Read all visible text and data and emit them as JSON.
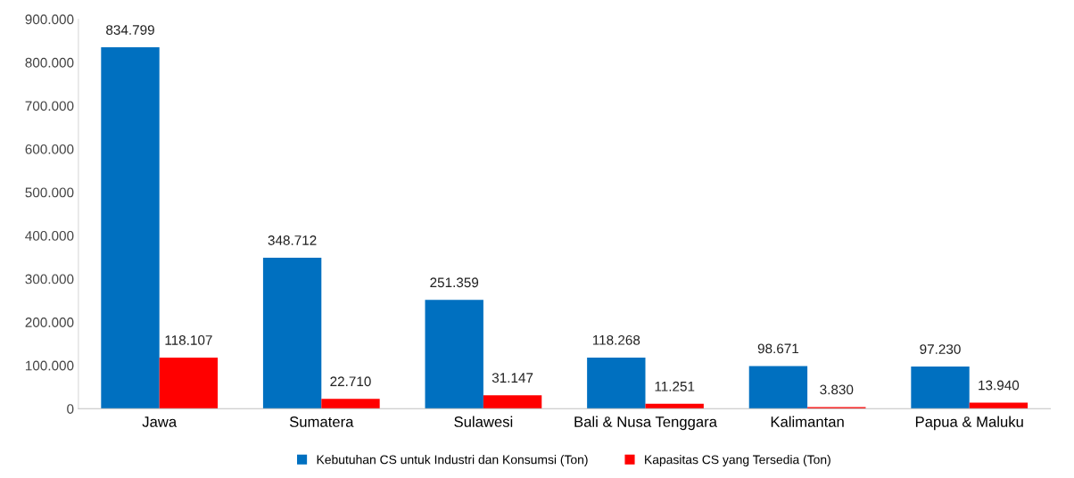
{
  "chart_data": {
    "type": "bar",
    "categories": [
      "Jawa",
      "Sumatera",
      "Sulawesi",
      "Bali & Nusa Tenggara",
      "Kalimantan",
      "Papua & Maluku"
    ],
    "series": [
      {
        "name": "Kebutuhan CS untuk Industri dan Konsumsi (Ton)",
        "color": "#0070c0",
        "values": [
          834799,
          348712,
          251359,
          118268,
          98671,
          97230
        ],
        "value_labels": [
          "834.799",
          "348.712",
          "251.359",
          "118.268",
          "98.671",
          "97.230"
        ]
      },
      {
        "name": "Kapasitas CS yang Tersedia (Ton)",
        "color": "#ff0000",
        "values": [
          118107,
          22710,
          31147,
          11251,
          3830,
          13940
        ],
        "value_labels": [
          "118.107",
          "22.710",
          "31.147",
          "11.251",
          "3.830",
          "13.940"
        ]
      }
    ],
    "ylim": [
      0,
      900000
    ],
    "yticks": [
      {
        "value": 0,
        "label": "0"
      },
      {
        "value": 100000,
        "label": "100.000"
      },
      {
        "value": 200000,
        "label": "200.000"
      },
      {
        "value": 300000,
        "label": "300.000"
      },
      {
        "value": 400000,
        "label": "400.000"
      },
      {
        "value": 500000,
        "label": "500.000"
      },
      {
        "value": 600000,
        "label": "600.000"
      },
      {
        "value": 700000,
        "label": "700.000"
      },
      {
        "value": 800000,
        "label": "800.000"
      },
      {
        "value": 900000,
        "label": "900.000"
      }
    ],
    "grid": false,
    "legend": "bottom"
  }
}
